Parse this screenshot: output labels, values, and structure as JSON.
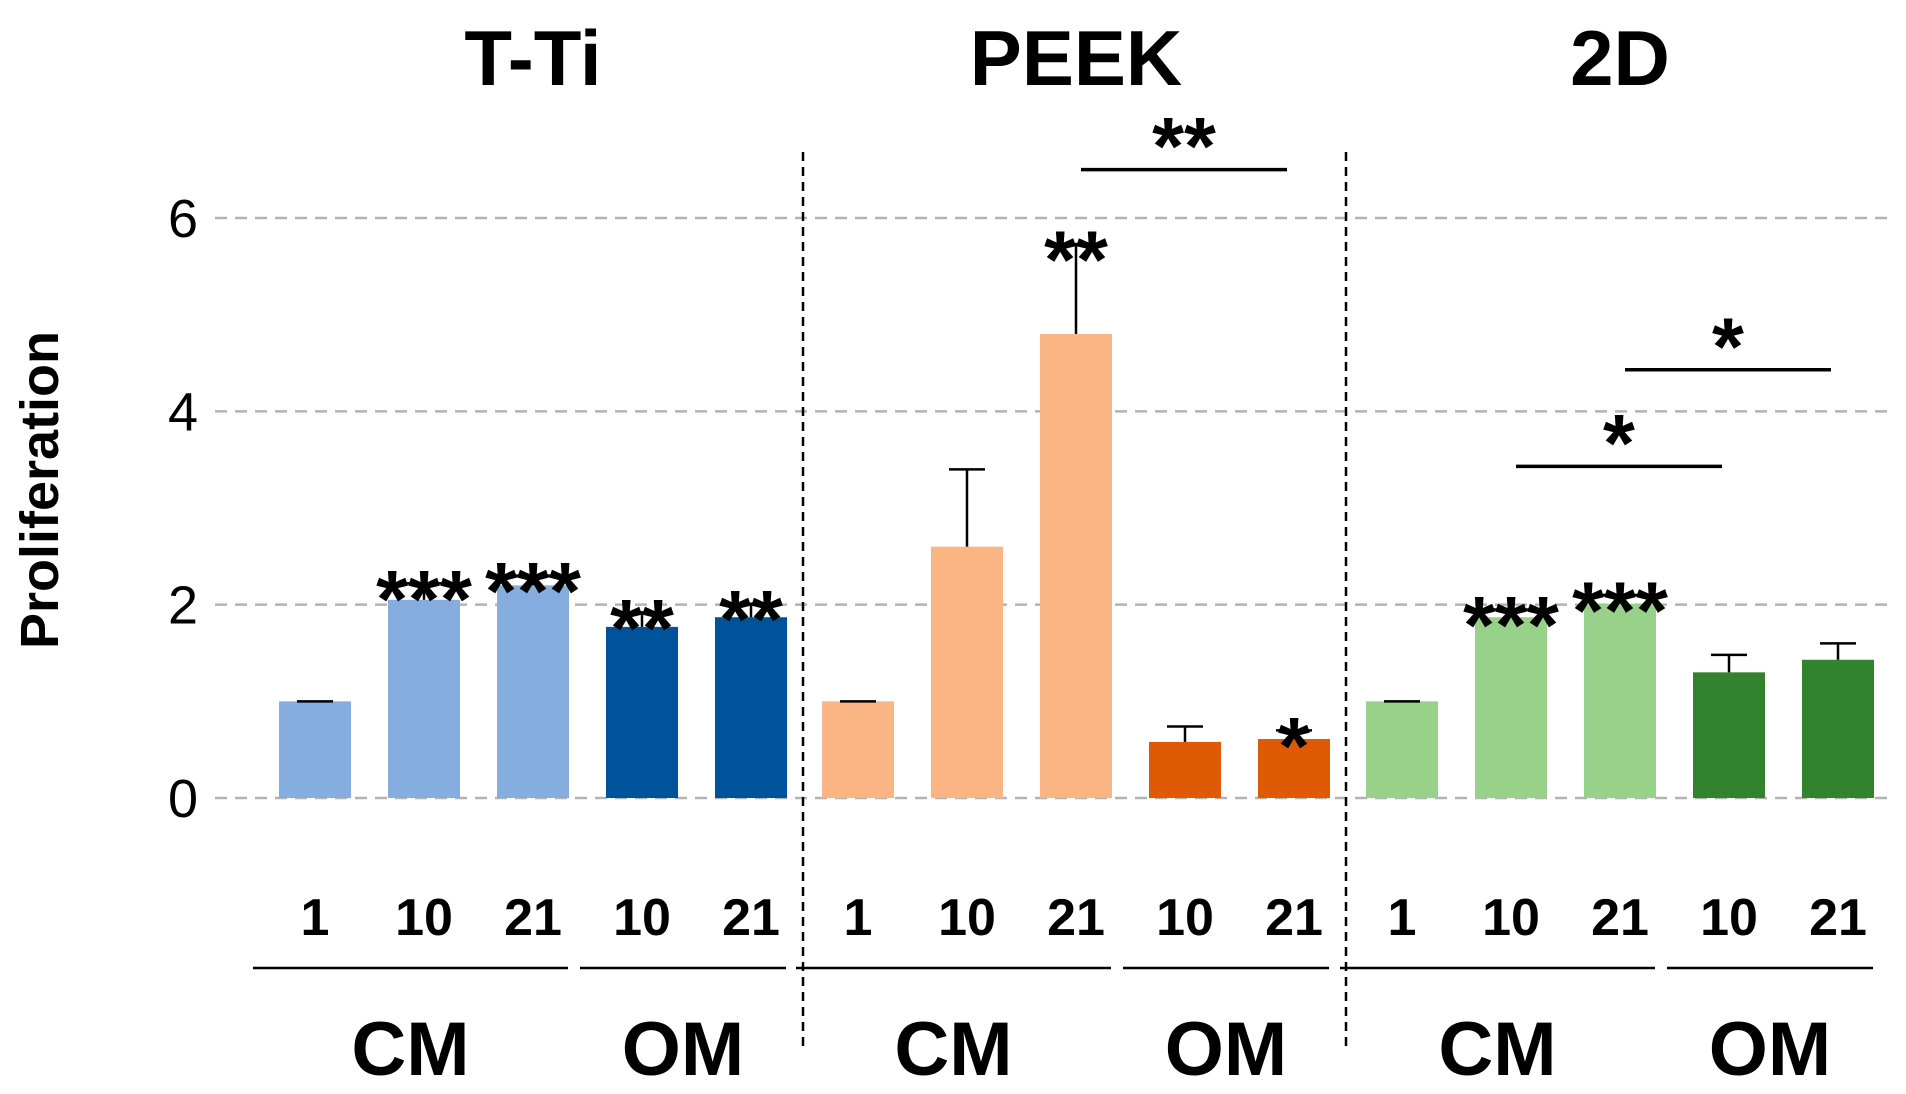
{
  "chart_data": {
    "type": "bar",
    "ylabel": "Proliferation",
    "ylim": [
      0,
      6
    ],
    "yticks": [
      0,
      2,
      4,
      6
    ],
    "grid": true,
    "colors": {
      "T-Ti": {
        "CM": "#86ade0",
        "OM": "#00529a"
      },
      "PEEK": {
        "CM": "#fbb584",
        "OM": "#e05a06"
      },
      "2D": {
        "CM": "#98d28a",
        "OM": "#33822d"
      }
    },
    "panels": [
      {
        "title": "T-Ti",
        "categories": [
          "1",
          "10",
          "21",
          "10",
          "21"
        ],
        "groups": [
          "CM",
          "CM",
          "CM",
          "OM",
          "OM"
        ],
        "values": [
          1.0,
          2.05,
          2.2,
          1.77,
          1.87
        ],
        "errors": [
          0.0,
          0.17,
          0.1,
          0.15,
          0.14
        ],
        "significance": [
          "",
          "***",
          "***",
          "**",
          "**"
        ],
        "comparisons": []
      },
      {
        "title": "PEEK",
        "categories": [
          "1",
          "10",
          "21",
          "10",
          "21"
        ],
        "groups": [
          "CM",
          "CM",
          "CM",
          "OM",
          "OM"
        ],
        "values": [
          1.0,
          2.6,
          4.8,
          0.58,
          0.61
        ],
        "errors": [
          0.0,
          0.8,
          0.93,
          0.16,
          0.09
        ],
        "significance": [
          "",
          "",
          "**",
          "",
          "*"
        ],
        "comparisons": [
          {
            "from": 2,
            "to": 4,
            "label": "**",
            "level": 6.5
          }
        ]
      },
      {
        "title": "2D",
        "categories": [
          "1",
          "10",
          "21",
          "10",
          "21"
        ],
        "groups": [
          "CM",
          "CM",
          "CM",
          "OM",
          "OM"
        ],
        "values": [
          1.0,
          1.87,
          2.01,
          1.3,
          1.43
        ],
        "errors": [
          0.0,
          0.08,
          0.09,
          0.18,
          0.17
        ],
        "significance": [
          "",
          "***",
          "***",
          "",
          ""
        ],
        "comparisons": [
          {
            "from": 1,
            "to": 3,
            "label": "*",
            "level": 3.43
          },
          {
            "from": 2,
            "to": 4,
            "label": "*",
            "level": 4.43
          }
        ]
      }
    ]
  }
}
